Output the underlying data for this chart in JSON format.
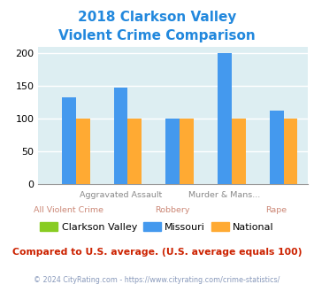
{
  "title_line1": "2018 Clarkson Valley",
  "title_line2": "Violent Crime Comparison",
  "title_color": "#2288dd",
  "cat_labels_top": [
    "",
    "Aggravated Assault",
    "",
    "Murder & Mans...",
    ""
  ],
  "cat_labels_bot": [
    "All Violent Crime",
    "",
    "Robbery",
    "",
    "Rape"
  ],
  "clarkson_values": [
    0,
    0,
    0,
    0,
    0
  ],
  "missouri_values": [
    132,
    147,
    100,
    200,
    112
  ],
  "national_values": [
    100,
    100,
    100,
    100,
    100
  ],
  "clarkson_color": "#88cc22",
  "missouri_color": "#4499ee",
  "national_color": "#ffaa33",
  "bg_color": "#ddeef2",
  "ylim": [
    0,
    210
  ],
  "yticks": [
    0,
    50,
    100,
    150,
    200
  ],
  "legend_labels": [
    "Clarkson Valley",
    "Missouri",
    "National"
  ],
  "footnote1": "Compared to U.S. average. (U.S. average equals 100)",
  "footnote2": "© 2024 CityRating.com - https://www.cityrating.com/crime-statistics/",
  "footnote1_color": "#cc2200",
  "footnote2_color": "#8899bb",
  "footnote2_link_color": "#4488cc"
}
